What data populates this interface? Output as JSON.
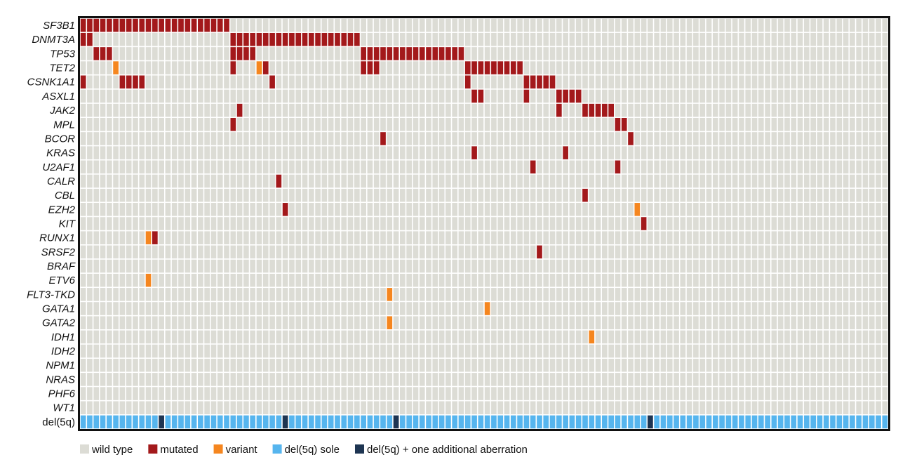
{
  "chart_data": {
    "type": "heatmap",
    "n_samples": 124,
    "legend": [
      {
        "label": "wild type",
        "color": "#dcdcd5"
      },
      {
        "label": "mutated",
        "color": "#a3191b"
      },
      {
        "label": "variant",
        "color": "#f5861f"
      },
      {
        "label": "del(5q) sole",
        "color": "#56b5ee"
      },
      {
        "label": "del(5q) + one additional aberration",
        "color": "#1e3552"
      }
    ],
    "rows": [
      {
        "name": "SF3B1",
        "mutated": [
          0,
          1,
          2,
          3,
          4,
          5,
          6,
          7,
          8,
          9,
          10,
          11,
          12,
          13,
          14,
          15,
          16,
          17,
          18,
          19,
          20,
          21,
          22
        ],
        "variant": []
      },
      {
        "name": "DNMT3A",
        "mutated": [
          0,
          1,
          23,
          24,
          25,
          26,
          27,
          28,
          29,
          30,
          31,
          32,
          33,
          34,
          35,
          36,
          37,
          38,
          39,
          40,
          41,
          42
        ],
        "variant": []
      },
      {
        "name": "TP53",
        "mutated": [
          2,
          3,
          4,
          23,
          24,
          25,
          26,
          43,
          44,
          45,
          46,
          47,
          48,
          49,
          50,
          51,
          52,
          53,
          54,
          55,
          56,
          57,
          58
        ],
        "variant": []
      },
      {
        "name": "TET2",
        "mutated": [
          23,
          28,
          43,
          44,
          45,
          59,
          60,
          61,
          62,
          63,
          64,
          65,
          66,
          67
        ],
        "variant": [
          5,
          27
        ]
      },
      {
        "name": "CSNK1A1",
        "mutated": [
          0,
          6,
          7,
          8,
          9,
          29,
          59,
          68,
          69,
          70,
          71,
          72
        ],
        "variant": []
      },
      {
        "name": "ASXL1",
        "mutated": [
          60,
          61,
          68,
          73,
          74,
          75,
          76
        ],
        "variant": []
      },
      {
        "name": "JAK2",
        "mutated": [
          24,
          73,
          77,
          78,
          79,
          80,
          81
        ],
        "variant": []
      },
      {
        "name": "MPL",
        "mutated": [
          23,
          82,
          83
        ],
        "variant": []
      },
      {
        "name": "BCOR",
        "mutated": [
          46,
          84
        ],
        "variant": []
      },
      {
        "name": "KRAS",
        "mutated": [
          60,
          74
        ],
        "variant": []
      },
      {
        "name": "U2AF1",
        "mutated": [
          69,
          82
        ],
        "variant": []
      },
      {
        "name": "CALR",
        "mutated": [
          30
        ],
        "variant": []
      },
      {
        "name": "CBL",
        "mutated": [
          77
        ],
        "variant": []
      },
      {
        "name": "EZH2",
        "mutated": [
          31
        ],
        "variant": [
          85
        ]
      },
      {
        "name": "KIT",
        "mutated": [
          86
        ],
        "variant": []
      },
      {
        "name": "RUNX1",
        "mutated": [
          11
        ],
        "variant": [
          10
        ]
      },
      {
        "name": "SRSF2",
        "mutated": [
          70
        ],
        "variant": []
      },
      {
        "name": "BRAF",
        "mutated": [],
        "variant": []
      },
      {
        "name": "ETV6",
        "mutated": [],
        "variant": [
          10
        ]
      },
      {
        "name": "FLT3-TKD",
        "mutated": [],
        "variant": [
          47
        ]
      },
      {
        "name": "GATA1",
        "mutated": [],
        "variant": [
          62
        ]
      },
      {
        "name": "GATA2",
        "mutated": [],
        "variant": [
          47
        ]
      },
      {
        "name": "IDH1",
        "mutated": [],
        "variant": [
          78
        ]
      },
      {
        "name": "IDH2",
        "mutated": [],
        "variant": []
      },
      {
        "name": "NPM1",
        "mutated": [],
        "variant": []
      },
      {
        "name": "NRAS",
        "mutated": [],
        "variant": []
      },
      {
        "name": "PHF6",
        "mutated": [],
        "variant": []
      },
      {
        "name": "WT1",
        "mutated": [],
        "variant": []
      }
    ],
    "del5q": {
      "name": "del(5q)",
      "additional": [
        12,
        31,
        48,
        87
      ]
    }
  }
}
